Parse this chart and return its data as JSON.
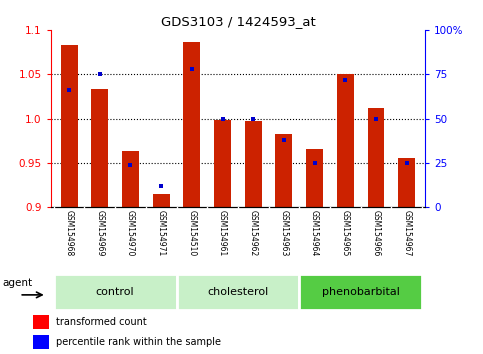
{
  "title": "GDS3103 / 1424593_at",
  "samples": [
    "GSM154968",
    "GSM154969",
    "GSM154970",
    "GSM154971",
    "GSM154510",
    "GSM154961",
    "GSM154962",
    "GSM154963",
    "GSM154964",
    "GSM154965",
    "GSM154966",
    "GSM154967"
  ],
  "red_values": [
    1.083,
    1.033,
    0.963,
    0.915,
    1.087,
    0.998,
    0.997,
    0.983,
    0.966,
    1.05,
    1.012,
    0.955
  ],
  "blue_values": [
    66,
    75,
    24,
    12,
    78,
    50,
    50,
    38,
    25,
    72,
    50,
    25
  ],
  "ylim_left": [
    0.9,
    1.1
  ],
  "ylim_right": [
    0,
    100
  ],
  "yticks_left": [
    0.9,
    0.95,
    1.0,
    1.05,
    1.1
  ],
  "yticks_right": [
    0,
    25,
    50,
    75,
    100
  ],
  "bar_color": "#cc2200",
  "percentile_color": "#0000cc",
  "group_configs": [
    {
      "label": "control",
      "start": 0,
      "end": 3,
      "color": "#c8f0c8"
    },
    {
      "label": "cholesterol",
      "start": 4,
      "end": 7,
      "color": "#c8f0c8"
    },
    {
      "label": "phenobarbital",
      "start": 8,
      "end": 11,
      "color": "#55cc44"
    }
  ],
  "agent_label": "agent",
  "legend_red": "transformed count",
  "legend_blue": "percentile rank within the sample"
}
